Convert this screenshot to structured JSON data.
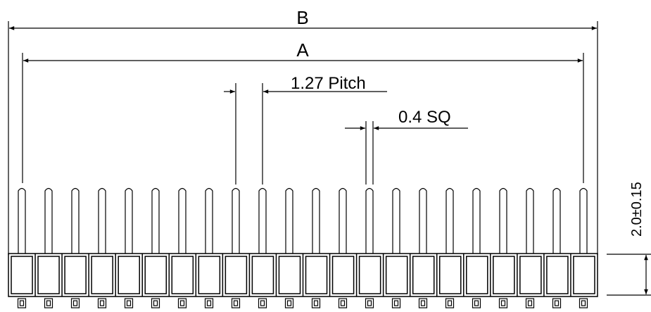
{
  "dimensions": {
    "overall_label": "B",
    "pin_span_label": "A",
    "pitch_label": "1.27 Pitch",
    "pin_size_label": "0.4 SQ",
    "height_label": "2.0±0.15"
  },
  "pins": {
    "count": 22
  },
  "colors": {
    "line": "#000000",
    "background": "#ffffff"
  }
}
